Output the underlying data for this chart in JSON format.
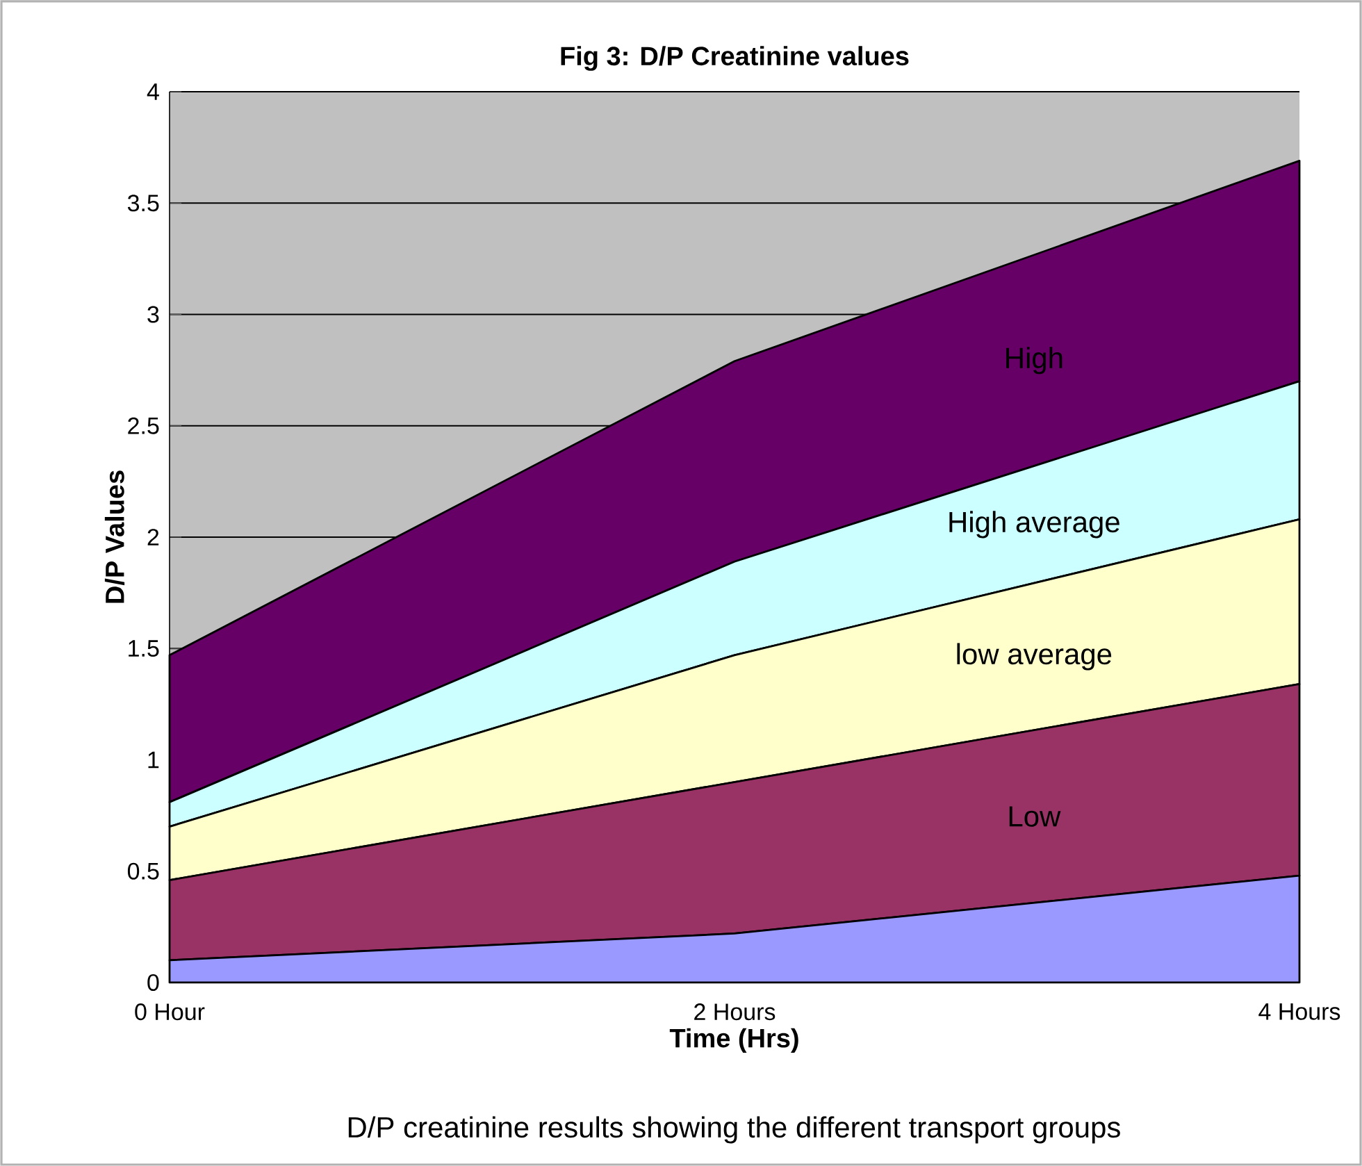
{
  "chart_data": {
    "type": "area",
    "stacked": true,
    "title": "Fig 3: D/P Creatinine values",
    "xlabel": "Time (Hrs)",
    "ylabel": "D/P Values",
    "annotations": [
      "D/P creatinine results showing the different transport  groups"
    ],
    "categories": [
      "0 Hour",
      "2 Hours",
      "4 Hours"
    ],
    "series": [
      {
        "color": "#9999ff",
        "values": [
          0.1,
          0.22,
          0.48
        ]
      },
      {
        "name": "Low",
        "color": "#993366",
        "values": [
          0.36,
          0.68,
          0.86
        ]
      },
      {
        "name": "low average",
        "color": "#ffffcc",
        "values": [
          0.24,
          0.57,
          0.74
        ]
      },
      {
        "name": "High average",
        "color": "#ccffff",
        "values": [
          0.11,
          0.42,
          0.62
        ]
      },
      {
        "name": "High",
        "color": "#660066",
        "values": [
          0.66,
          0.9,
          0.99
        ]
      }
    ],
    "ylim": [
      0,
      4
    ],
    "yticks": [
      0,
      0.5,
      1,
      1.5,
      2,
      2.5,
      3,
      3.5,
      4
    ],
    "grid": "y"
  }
}
